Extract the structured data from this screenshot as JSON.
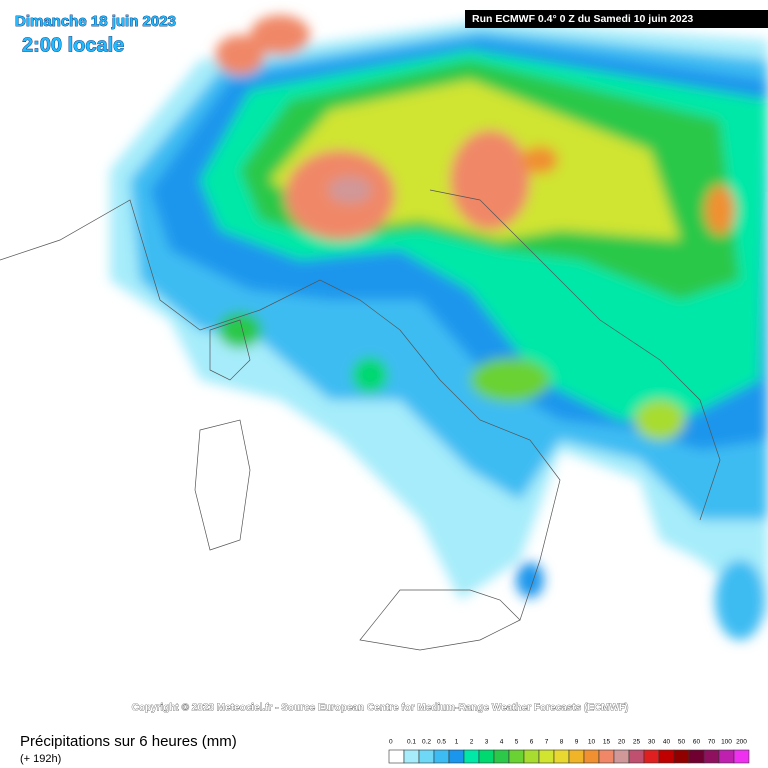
{
  "header": {
    "date": "Dimanche 18 juin 2023",
    "time": "2:00 locale",
    "run": "Run ECMWF 0.4° 0 Z du Samedi 10 juin 2023"
  },
  "copyright": "Copyright © 2023 Meteociel.fr - Source European Centre for Medium-Range Weather Forecasts (ECMWF)",
  "footer": {
    "title": "Précipitations sur 6 heures (mm)",
    "lead": "(+ 192h)"
  },
  "legend": {
    "labels": [
      0,
      0.1,
      0.2,
      0.5,
      1,
      2,
      3,
      4,
      5,
      6,
      7,
      8,
      9,
      10,
      15,
      20,
      25,
      30,
      40,
      50,
      60,
      70,
      100,
      200
    ],
    "colors": [
      "#ffffff",
      "#a6ecfa",
      "#6fd8f7",
      "#3cbcf2",
      "#1a96ec",
      "#00e8a8",
      "#00d870",
      "#2cc84a",
      "#6ad232",
      "#a8dc2e",
      "#d0e430",
      "#e8d830",
      "#f0b428",
      "#f09030",
      "#f08868",
      "#d09898",
      "#c05070",
      "#e02020",
      "#c00000",
      "#900000",
      "#700030",
      "#901060",
      "#c020b0",
      "#f030f0"
    ]
  }
}
